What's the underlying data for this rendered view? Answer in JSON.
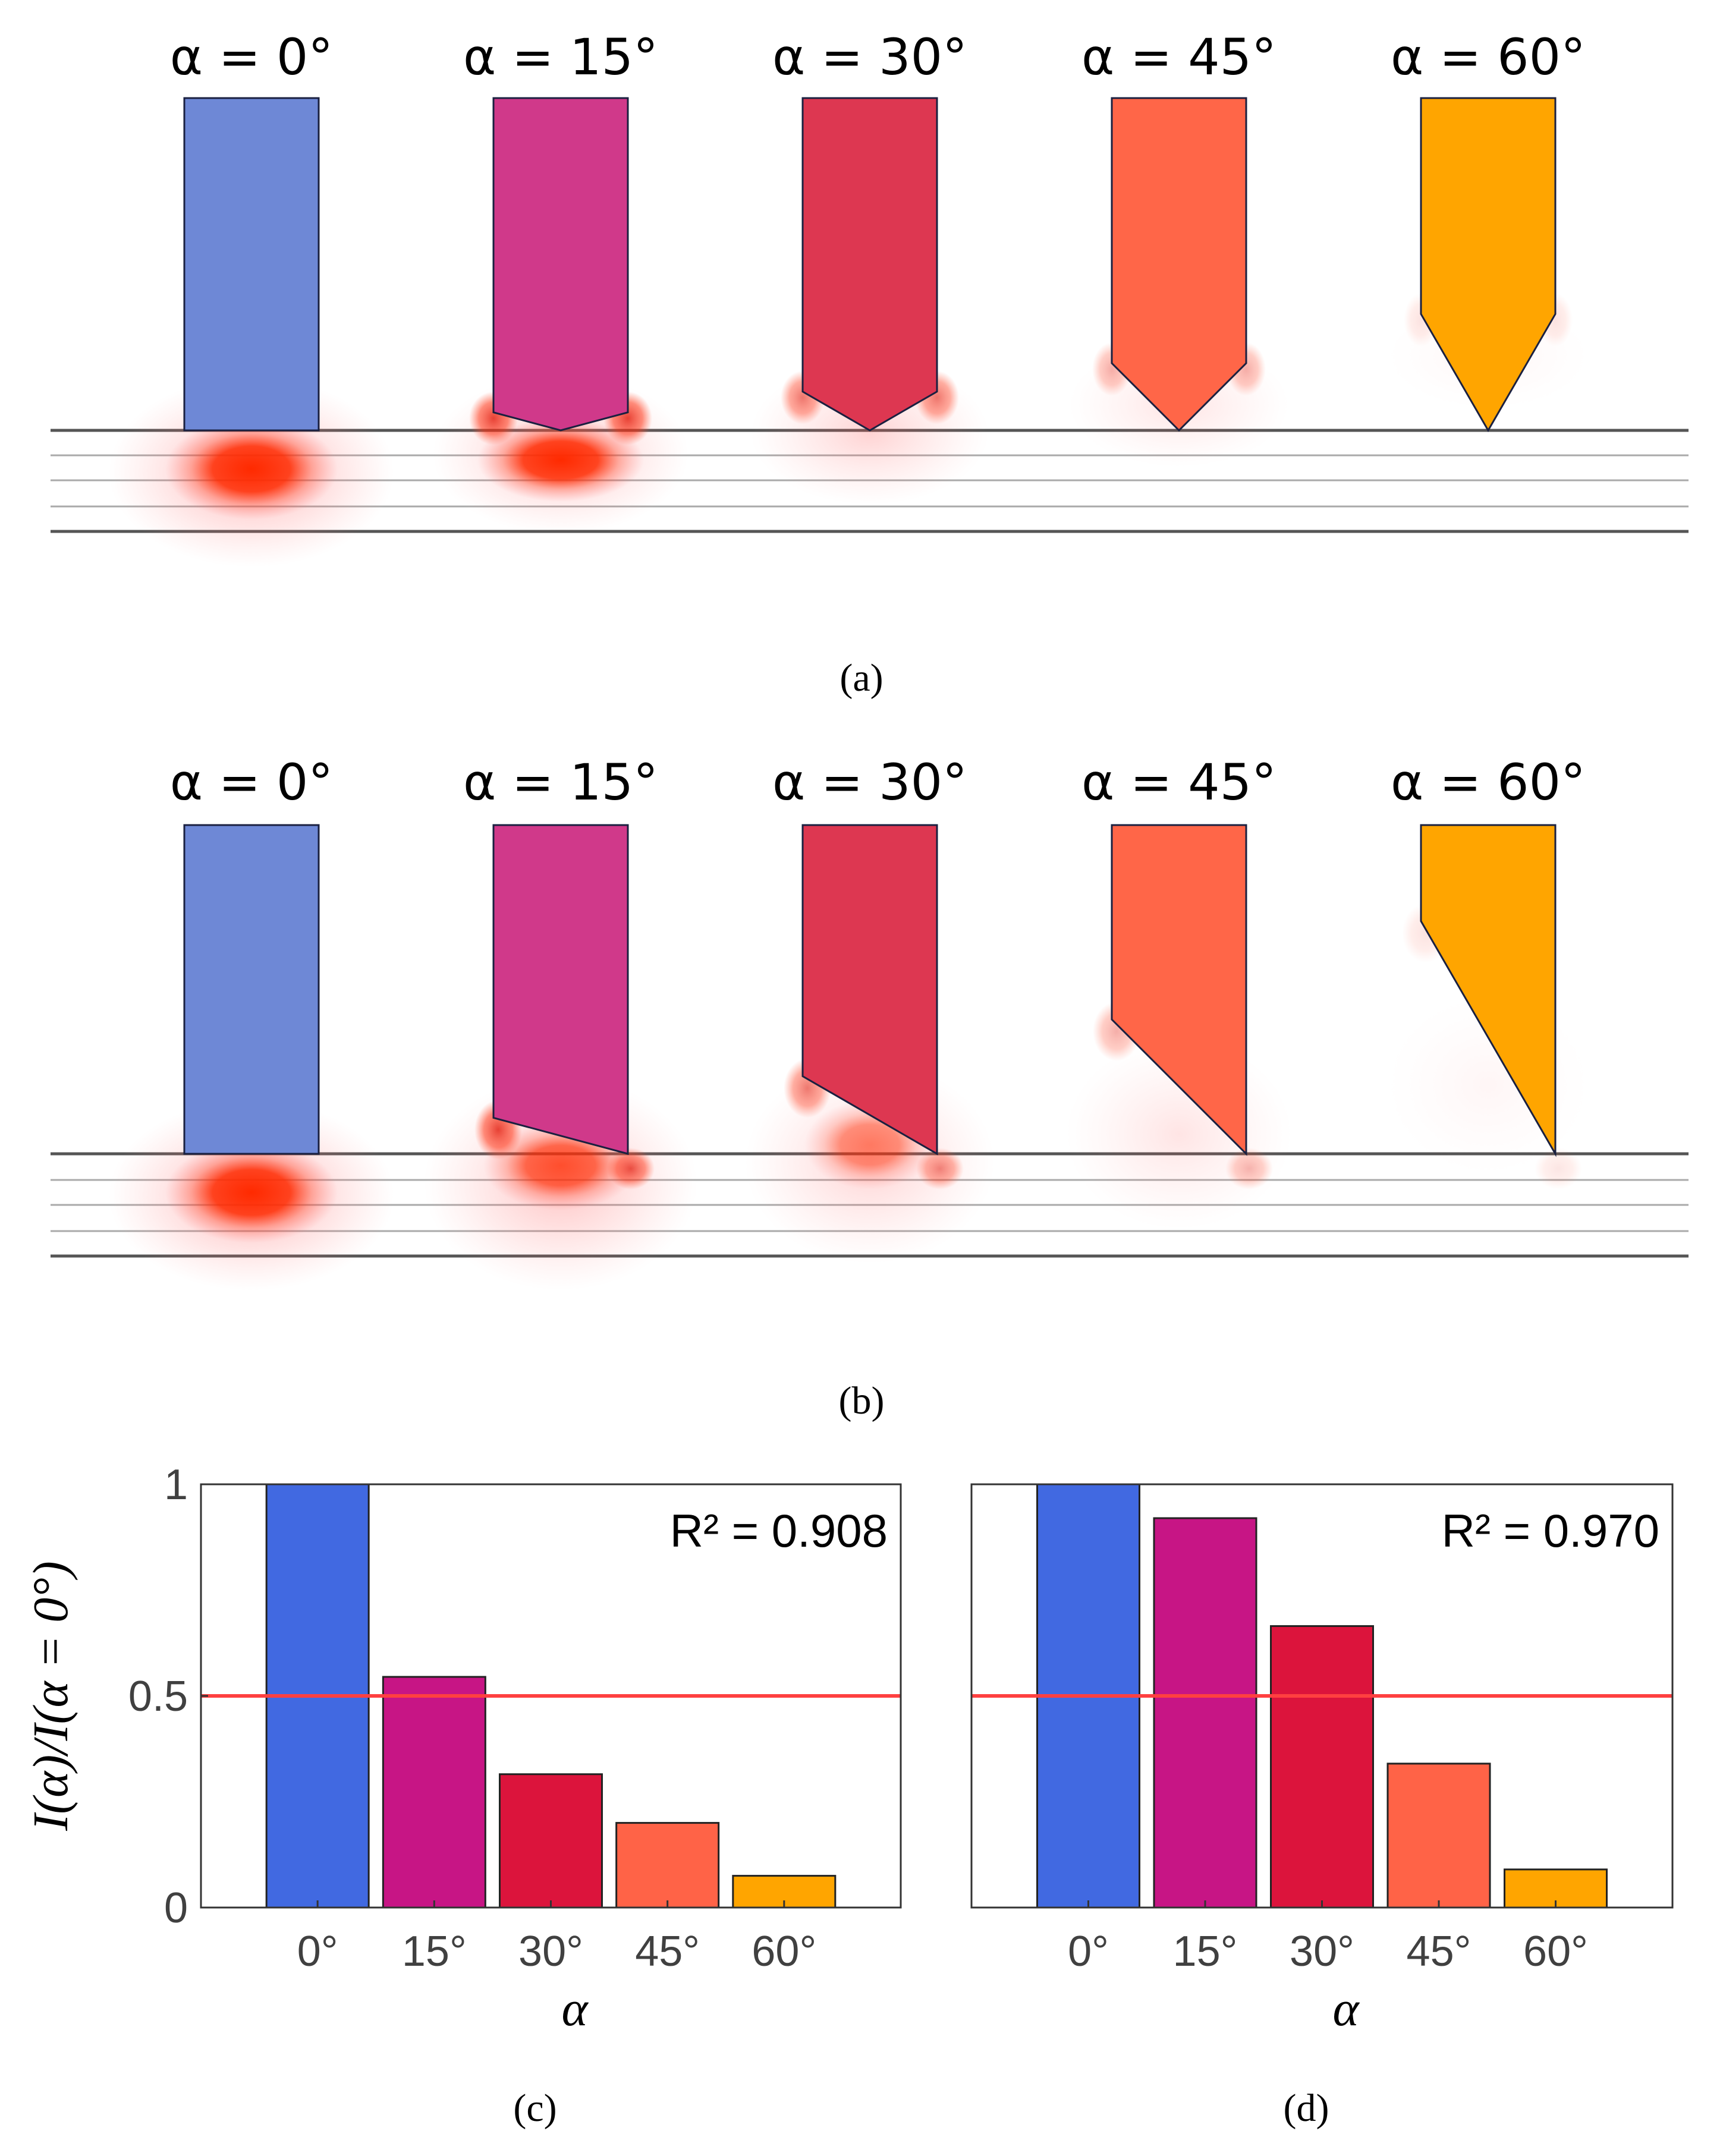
{
  "panel_labels": [
    "(a)",
    "(b)",
    "(c)",
    "(d)"
  ],
  "alpha_labels": [
    "α = 0°",
    "α = 15°",
    "α = 30°",
    "α = 45°",
    "α = 60°"
  ],
  "tip_angles_deg": [
    0,
    15,
    30,
    45,
    60
  ],
  "tip_colors": [
    "#6e88d6",
    "#d0398a",
    "#dd3751",
    "#ff6648",
    "#ffa500"
  ],
  "field_color": "#ff2a00",
  "chart_data": [
    {
      "type": "bar",
      "panel": "(c)",
      "categories": [
        "0°",
        "15°",
        "30°",
        "45°",
        "60°"
      ],
      "values": [
        1.0,
        0.545,
        0.315,
        0.2,
        0.075
      ],
      "colors": [
        "#4169e1",
        "#c71585",
        "#dc143c",
        "#ff6347",
        "#ffa500"
      ],
      "reference_line": 0.5,
      "reference_color": "#ff4040",
      "annotation": "R² = 0.908",
      "xlabel": "α",
      "ylabel": "I(α)/I(α = 0°)",
      "ylim": [
        0,
        1
      ],
      "yticks": [
        "0",
        "0.5",
        "1"
      ]
    },
    {
      "type": "bar",
      "panel": "(d)",
      "categories": [
        "0°",
        "15°",
        "30°",
        "45°",
        "60°"
      ],
      "values": [
        1.0,
        0.92,
        0.665,
        0.34,
        0.09
      ],
      "colors": [
        "#4169e1",
        "#c71585",
        "#dc143c",
        "#ff6347",
        "#ffa500"
      ],
      "reference_line": 0.5,
      "reference_color": "#ff4040",
      "annotation": "R² = 0.970",
      "xlabel": "α",
      "ylabel": "",
      "ylim": [
        0,
        1
      ],
      "yticks": []
    }
  ]
}
